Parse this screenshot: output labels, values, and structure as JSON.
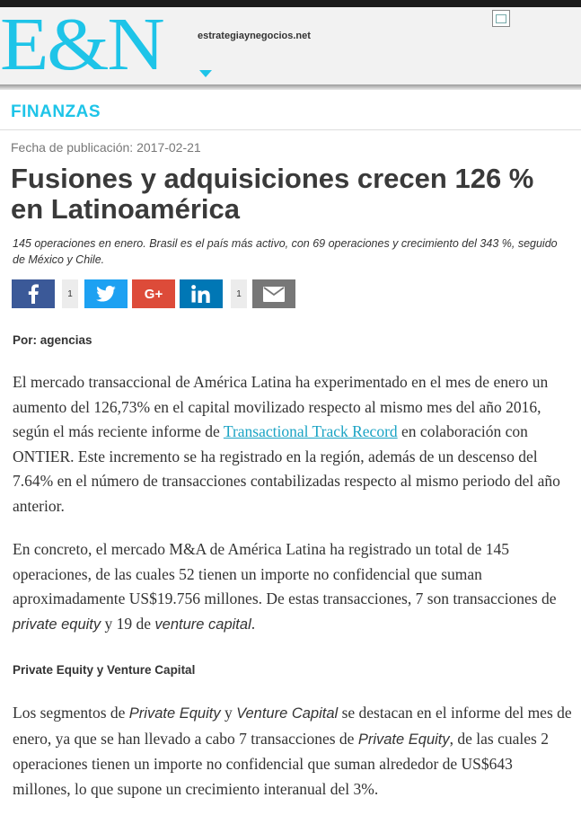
{
  "header": {
    "logo": "E&N",
    "site": "estrategiaynegocios.net"
  },
  "section": "FINANZAS",
  "article": {
    "pubdate": "Fecha de publicación: 2017-02-21",
    "title": "Fusiones y adquisiciones crecen 126 % en Latinoamérica",
    "subtitle": "145 operaciones en enero. Brasil es el país más activo, con 69 operaciones y crecimiento del 343 %, seguido de México y Chile.",
    "byline": "Por: agencias",
    "p1_a": "El mercado transaccional de América Latina ha experimentado en el mes de enero un aumento del 126,73% en el capital movilizado respecto al mismo mes del año 2016, según el más reciente informe de ",
    "p1_link": "Transactional Track Record",
    "p1_b": " en colaboración con ONTIER. Este incremento se ha registrado en la región, además de un descenso del 7.64% en el número de transacciones contabilizadas respecto al mismo periodo del año anterior.",
    "p2_a": "En concreto, el mercado M&A de América Latina ha registrado un total de 145 operaciones, de las cuales 52 tienen un importe no confidencial que suman aproximadamente US$19.756 millones. De estas transacciones, 7 son transacciones de ",
    "p2_pe": "private equity",
    "p2_b": " y 19 de ",
    "p2_vc": "venture capital",
    "p2_c": ".",
    "subhead": "Private Equity y Venture Capital",
    "p3_a": "Los segmentos de ",
    "p3_pe": "Private Equity",
    "p3_b": " y ",
    "p3_vc": "Venture Capital",
    "p3_c": " se destacan en el informe del mes de enero, ya que se han llevado a cabo 7 transacciones de ",
    "p3_pe2": "Private Equity",
    "p3_d": ", de las cuales 2 operaciones tienen un importe no confidencial que suman alrededor de US$643 millones, lo que supone un crecimiento interanual del 3%."
  },
  "share": {
    "facebook": {
      "icon": "facebook-icon",
      "count": "1",
      "color": "#3b5998"
    },
    "twitter": {
      "icon": "twitter-icon",
      "color": "#1da1f2"
    },
    "googleplus": {
      "icon": "google-plus-icon",
      "label": "G+",
      "color": "#dd4b39"
    },
    "linkedin": {
      "icon": "linkedin-icon",
      "count": "1",
      "color": "#0077b5"
    },
    "email": {
      "icon": "email-icon",
      "color": "#777777"
    }
  },
  "colors": {
    "accent": "#1ec4e8",
    "link": "#1aa3c4"
  }
}
